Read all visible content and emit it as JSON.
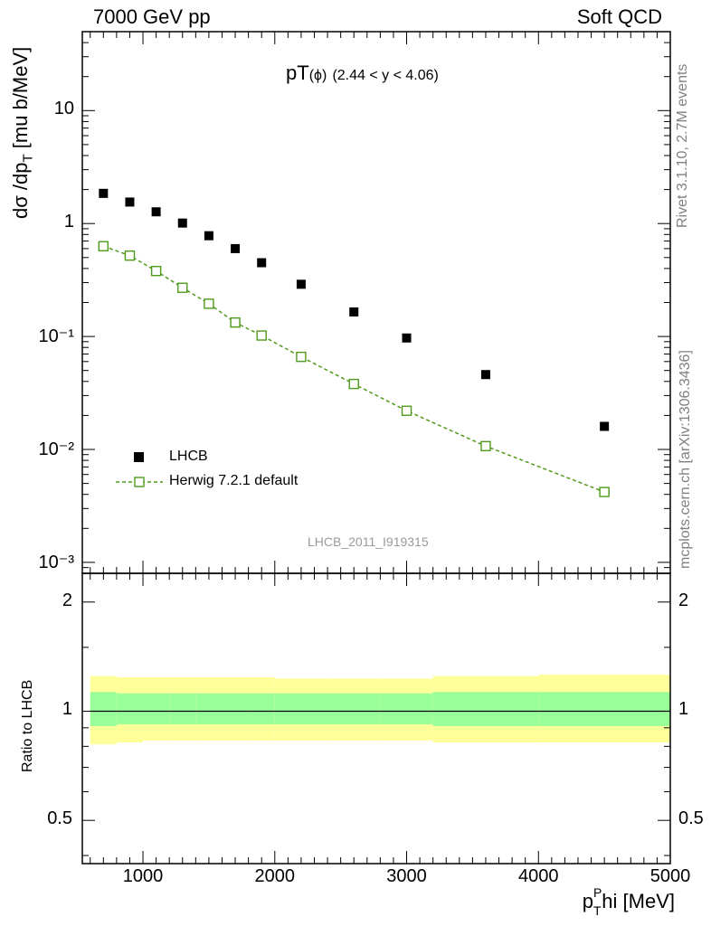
{
  "header": {
    "left": "7000 GeV pp",
    "right": "Soft QCD"
  },
  "main_plot": {
    "title_main": "pT",
    "title_paren": "(ϕ)",
    "title_range": "(2.44 < y < 4.06)",
    "ylabel": "dσ /dp",
    "ylabel_sub": "T",
    "ylabel_units": " [mu b/MeV]",
    "analysis_tag": "LHCB_2011_I919315",
    "y_ticks": [
      "10⁻³",
      "10⁻²",
      "10⁻¹",
      "1",
      "10"
    ],
    "legend": [
      {
        "label": "LHCB",
        "style": "filled-square",
        "color": "#000000"
      },
      {
        "label": "Herwig 7.2.1 default",
        "style": "open-square-dashed",
        "color": "#4f9a1a"
      }
    ]
  },
  "ratio_plot": {
    "ylabel": "Ratio to LHCB",
    "y_ticks": [
      "0.5",
      "1",
      "2"
    ],
    "band_colors": {
      "inner": "#99ff99",
      "outer": "#ffff99"
    }
  },
  "x_axis": {
    "label_prefix": "p",
    "label_sub": "T",
    "label_sup": "P",
    "label_suffix": "hi [MeV]",
    "ticks": [
      "1000",
      "2000",
      "3000",
      "4000",
      "5000"
    ]
  },
  "side_text": {
    "rivet": "Rivet 3.1.10,  2.7M events",
    "mcplots": "mcplots.cern.ch [arXiv:1306.3436]"
  },
  "chart_data": {
    "type": "scatter",
    "x_scale": "linear",
    "y_scale": "log",
    "xlim": [
      540,
      5000
    ],
    "ylim": [
      0.0008,
      50
    ],
    "ratio_ylim": [
      0.38,
      2.4
    ],
    "x": [
      700,
      900,
      1100,
      1300,
      1500,
      1700,
      1900,
      2200,
      2600,
      3000,
      3600,
      4500
    ],
    "bin_edges": [
      600,
      800,
      1000,
      1200,
      1400,
      1600,
      1800,
      2000,
      2400,
      2800,
      3200,
      4000,
      5000
    ],
    "series": [
      {
        "name": "LHCB",
        "values": [
          1.85,
          1.55,
          1.27,
          1.01,
          0.78,
          0.6,
          0.45,
          0.29,
          0.165,
          0.097,
          0.046,
          0.016
        ]
      },
      {
        "name": "Herwig 7.2.1 default",
        "values": [
          0.63,
          0.52,
          0.38,
          0.27,
          0.195,
          0.133,
          0.102,
          0.066,
          0.038,
          0.022,
          0.0107,
          0.0042
        ]
      }
    ],
    "ratio_bands": {
      "inner_lo": [
        0.91,
        0.92,
        0.92,
        0.92,
        0.92,
        0.92,
        0.92,
        0.92,
        0.92,
        0.92,
        0.91,
        0.91
      ],
      "inner_hi": [
        1.13,
        1.12,
        1.12,
        1.12,
        1.12,
        1.12,
        1.12,
        1.12,
        1.12,
        1.12,
        1.13,
        1.13
      ],
      "outer_lo": [
        0.81,
        0.82,
        0.83,
        0.83,
        0.83,
        0.83,
        0.83,
        0.83,
        0.83,
        0.83,
        0.82,
        0.82
      ],
      "outer_hi": [
        1.25,
        1.24,
        1.24,
        1.24,
        1.24,
        1.24,
        1.24,
        1.23,
        1.23,
        1.23,
        1.25,
        1.26
      ]
    }
  }
}
